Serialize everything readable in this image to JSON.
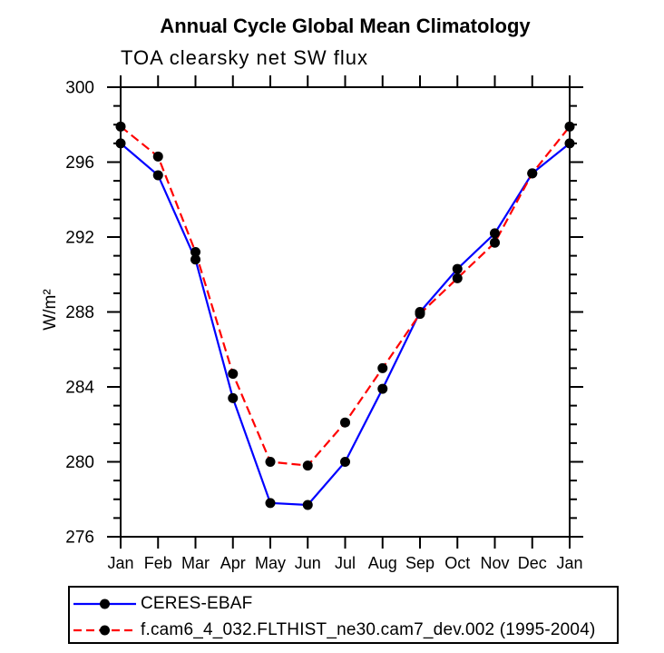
{
  "header": {
    "title": "Annual Cycle Global Mean Climatology",
    "subtitle": "TOA clearsky net SW flux"
  },
  "y_axis": {
    "label": "W/m²",
    "tick_labels": [
      "276",
      "280",
      "284",
      "288",
      "292",
      "296",
      "300"
    ]
  },
  "chart_data": {
    "type": "line",
    "title": "Annual Cycle Global Mean Climatology",
    "subtitle": "TOA clearsky net SW flux",
    "ylabel": "W/m²",
    "xlabel": "",
    "categories": [
      "Jan",
      "Feb",
      "Mar",
      "Apr",
      "May",
      "Jun",
      "Jul",
      "Aug",
      "Sep",
      "Oct",
      "Nov",
      "Dec",
      "Jan"
    ],
    "series": [
      {
        "name": "CERES-EBAF",
        "color": "#0000ff",
        "style": "solid",
        "marker": "circle",
        "marker_color": "#000000",
        "values": [
          297.0,
          295.3,
          290.8,
          283.4,
          277.8,
          277.7,
          280.0,
          283.9,
          288.0,
          290.3,
          292.2,
          295.4,
          297.0
        ]
      },
      {
        "name": "f.cam6_4_032.FLTHIST_ne30.cam7_dev.002 (1995-2004)",
        "color": "#ff0000",
        "style": "dashed",
        "marker": "circle",
        "marker_color": "#000000",
        "values": [
          297.9,
          296.3,
          291.2,
          284.7,
          280.0,
          279.8,
          282.1,
          285.0,
          287.9,
          289.8,
          291.7,
          295.4,
          297.9
        ]
      }
    ],
    "ylim": [
      276,
      300
    ],
    "y_major_step": 4,
    "y_minor_step": 1,
    "grid": false,
    "legend_position": "bottom",
    "frame_color": "#000000",
    "background_color": "#ffffff"
  }
}
